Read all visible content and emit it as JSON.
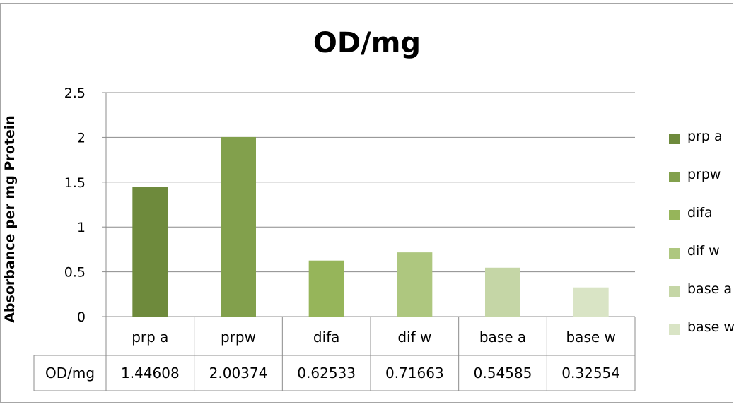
{
  "chart_data": {
    "type": "bar",
    "title": "OD/mg",
    "ylabel": "Absorbance per mg Protein",
    "xlabel": "",
    "categories": [
      "prp a",
      "prpw",
      "difa",
      "dif w",
      "base a",
      "base w"
    ],
    "series": [
      {
        "name": "OD/mg",
        "values": [
          1.44608,
          2.00374,
          0.62533,
          0.71663,
          0.54585,
          0.32554
        ],
        "colors": [
          "#6e8a3c",
          "#82a04c",
          "#96b55a",
          "#aec77f",
          "#c5d6a6",
          "#d9e4c5"
        ]
      }
    ],
    "ylim": [
      0,
      2.5
    ],
    "yticks": [
      "0",
      "0.5",
      "1",
      "1.5",
      "2",
      "2.5"
    ],
    "grid": true,
    "legend_position": "right",
    "legend": [
      "prp a",
      "prpw",
      "difa",
      "dif w",
      "base a",
      "base w"
    ],
    "table": {
      "row_label": "OD/mg",
      "values": [
        "1.44608",
        "2.00374",
        "0.62533",
        "0.71663",
        "0.54585",
        "0.32554"
      ]
    }
  }
}
